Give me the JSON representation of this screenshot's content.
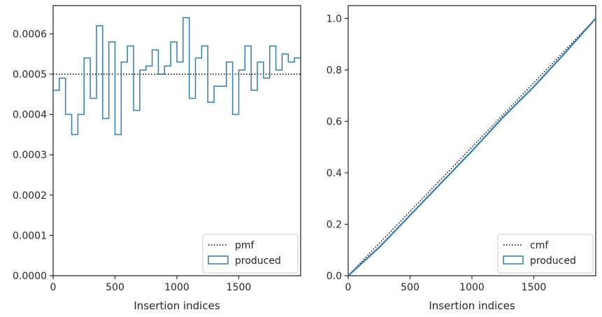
{
  "chart_data": [
    {
      "type": "step",
      "title": "",
      "xlabel": "Insertion indices",
      "ylabel": "",
      "xlim": [
        0,
        2000
      ],
      "ylim": [
        0,
        0.00067
      ],
      "xticks": [
        0,
        500,
        1000,
        1500
      ],
      "xtick_labels": [
        "0",
        "500",
        "1000",
        "1500"
      ],
      "yticks": [
        0,
        0.0001,
        0.0002,
        0.0003,
        0.0004,
        0.0005,
        0.0006
      ],
      "ytick_labels": [
        "0.0000",
        "0.0001",
        "0.0002",
        "0.0003",
        "0.0004",
        "0.0005",
        "0.0006"
      ],
      "grid": false,
      "legend": {
        "position": "lower-right",
        "entries": [
          "pmf",
          "produced"
        ]
      },
      "reference_line": {
        "name": "pmf",
        "y": 0.0005,
        "style": "dotted",
        "color": "#000000"
      },
      "histogram": {
        "name": "produced",
        "color": "#2e7db8",
        "bin_edges": [
          0,
          50,
          100,
          150,
          200,
          250,
          300,
          350,
          400,
          450,
          500,
          550,
          600,
          650,
          700,
          750,
          800,
          850,
          900,
          950,
          1000,
          1050,
          1100,
          1150,
          1200,
          1250,
          1300,
          1350,
          1400,
          1450,
          1500,
          1550,
          1600,
          1650,
          1700,
          1750,
          1800,
          1850,
          1900,
          1950,
          2000
        ],
        "values": [
          0.00046,
          0.00049,
          0.0004,
          0.00035,
          0.0004,
          0.00054,
          0.00044,
          0.00062,
          0.00039,
          0.00058,
          0.00035,
          0.00053,
          0.00057,
          0.00041,
          0.00051,
          0.00052,
          0.00056,
          0.0005,
          0.00052,
          0.00058,
          0.00053,
          0.00064,
          0.00044,
          0.00054,
          0.00057,
          0.00043,
          0.00047,
          0.00047,
          0.00053,
          0.0004,
          0.00051,
          0.00057,
          0.00046,
          0.00053,
          0.00049,
          0.00057,
          0.00051,
          0.00055,
          0.00053,
          0.00054
        ]
      }
    },
    {
      "type": "line",
      "title": "",
      "xlabel": "Insertion indices",
      "ylabel": "",
      "xlim": [
        0,
        2000
      ],
      "ylim": [
        0,
        1.05
      ],
      "xticks": [
        0,
        500,
        1000,
        1500
      ],
      "xtick_labels": [
        "0",
        "500",
        "1000",
        "1500"
      ],
      "yticks": [
        0,
        0.2,
        0.4,
        0.6,
        0.8,
        1.0
      ],
      "ytick_labels": [
        "0.0",
        "0.2",
        "0.4",
        "0.6",
        "0.8",
        "1.0"
      ],
      "grid": false,
      "legend": {
        "position": "lower-right",
        "entries": [
          "cmf",
          "produced"
        ]
      },
      "series": [
        {
          "name": "cmf",
          "style": "dotted",
          "color": "#000000",
          "x": [
            0,
            2000
          ],
          "y": [
            0,
            1.0
          ]
        },
        {
          "name": "produced",
          "style": "solid",
          "color": "#2e7db8",
          "x": [
            0,
            250,
            500,
            750,
            1000,
            1250,
            1500,
            1750,
            2000
          ],
          "y": [
            0,
            0.11,
            0.235,
            0.36,
            0.485,
            0.615,
            0.735,
            0.865,
            1.0
          ]
        }
      ]
    }
  ]
}
